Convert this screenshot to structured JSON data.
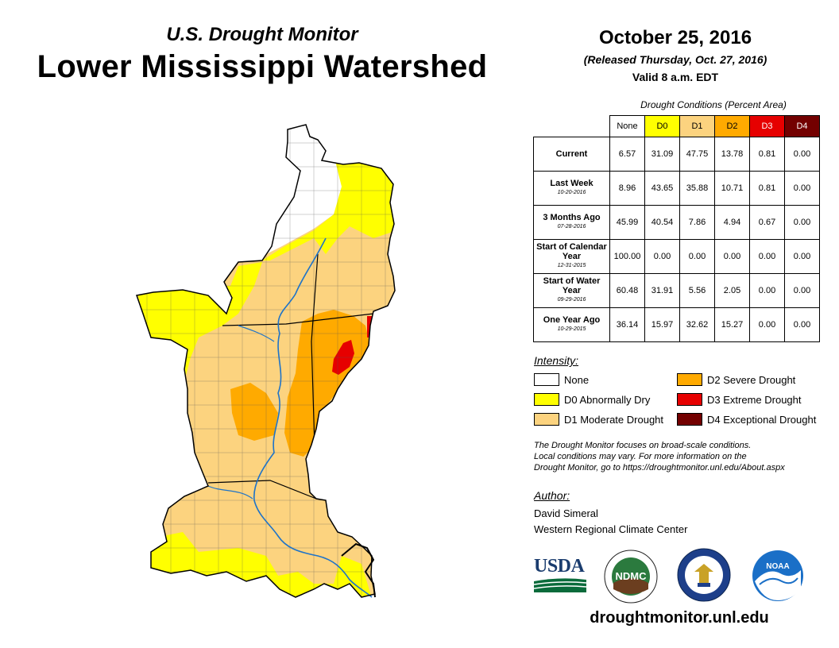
{
  "header": {
    "subtitle": "U.S. Drought Monitor",
    "title": "Lower Mississippi Watershed",
    "date": "October 25, 2016",
    "released": "(Released Thursday, Oct. 27, 2016)",
    "valid": "Valid 8 a.m. EDT"
  },
  "table": {
    "caption": "Drought Conditions (Percent Area)",
    "columns": [
      "None",
      "D0",
      "D1",
      "D2",
      "D3",
      "D4"
    ],
    "column_colors": [
      "#ffffff",
      "#ffff00",
      "#fcd37f",
      "#ffaa00",
      "#e60000",
      "#730000"
    ],
    "rows": [
      {
        "label": "Current",
        "date": "",
        "values": [
          "6.57",
          "31.09",
          "47.75",
          "13.78",
          "0.81",
          "0.00"
        ]
      },
      {
        "label": "Last Week",
        "date": "10-20-2016",
        "values": [
          "8.96",
          "43.65",
          "35.88",
          "10.71",
          "0.81",
          "0.00"
        ]
      },
      {
        "label": "3 Months Ago",
        "date": "07-28-2016",
        "values": [
          "45.99",
          "40.54",
          "7.86",
          "4.94",
          "0.67",
          "0.00"
        ]
      },
      {
        "label": "Start of Calendar Year",
        "date": "12-31-2015",
        "values": [
          "100.00",
          "0.00",
          "0.00",
          "0.00",
          "0.00",
          "0.00"
        ]
      },
      {
        "label": "Start of Water Year",
        "date": "09-29-2016",
        "values": [
          "60.48",
          "31.91",
          "5.56",
          "2.05",
          "0.00",
          "0.00"
        ]
      },
      {
        "label": "One Year Ago",
        "date": "10-29-2015",
        "values": [
          "36.14",
          "15.97",
          "32.62",
          "15.27",
          "0.00",
          "0.00"
        ]
      }
    ]
  },
  "legend": {
    "title": "Intensity:",
    "items": [
      {
        "label": "None",
        "color": "#ffffff"
      },
      {
        "label": "D0 Abnormally Dry",
        "color": "#ffff00"
      },
      {
        "label": "D1 Moderate Drought",
        "color": "#fcd37f"
      },
      {
        "label": "D2 Severe Drought",
        "color": "#ffaa00"
      },
      {
        "label": "D3 Extreme Drought",
        "color": "#e60000"
      },
      {
        "label": "D4 Exceptional Drought",
        "color": "#730000"
      }
    ]
  },
  "note": {
    "line1": "The Drought Monitor focuses on broad-scale conditions.",
    "line2": "Local conditions may vary. For more information on the",
    "line3": "Drought Monitor, go to https://droughtmonitor.unl.edu/About.aspx"
  },
  "author": {
    "heading": "Author:",
    "name": "David Simeral",
    "org": "Western Regional Climate Center"
  },
  "logos": {
    "usda": "USDA",
    "ndmc": "NDMC",
    "noaa": "NOAA"
  },
  "site": "droughtmonitor.unl.edu"
}
